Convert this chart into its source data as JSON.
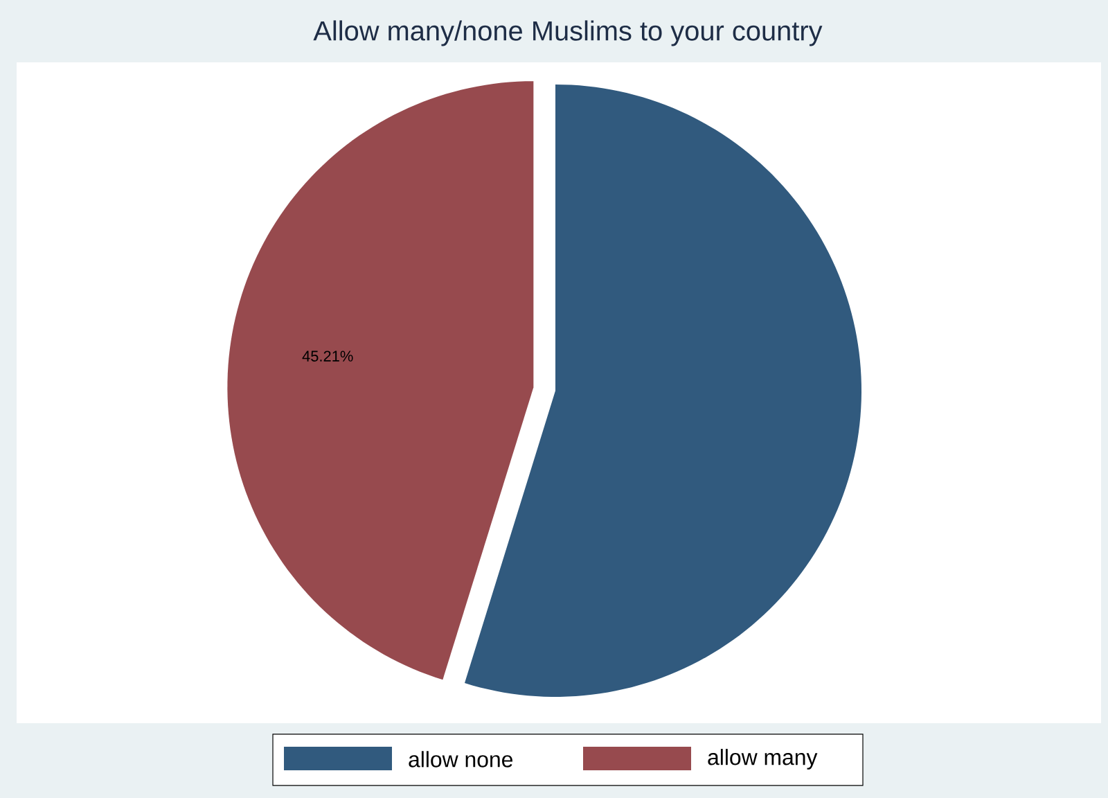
{
  "chart_data": {
    "type": "pie",
    "title": "Allow many/none Muslims to your country",
    "categories": [
      "allow none",
      "allow many"
    ],
    "values": [
      54.79,
      45.21
    ],
    "colors": [
      "#315a7e",
      "#974a4e"
    ],
    "value_labels": [
      null,
      "45.21%"
    ],
    "legend": "bottom"
  }
}
